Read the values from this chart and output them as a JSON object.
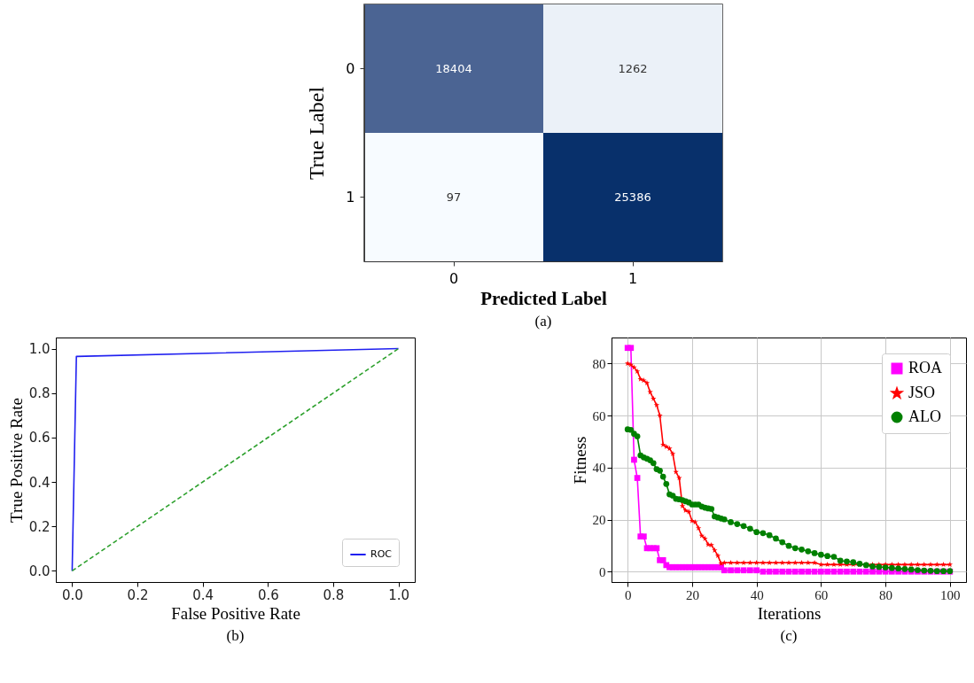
{
  "chart_data": [
    {
      "type": "heatmap",
      "xlabel": "Predicted Label",
      "ylabel": "True Label",
      "categories": [
        "0",
        "1"
      ],
      "y_categories": [
        "0",
        "1"
      ],
      "cells": [
        [
          18404,
          1262
        ],
        [
          97,
          25386
        ]
      ],
      "data_labels": true,
      "annotations": [
        "(a)"
      ]
    },
    {
      "type": "line",
      "xlabel": "False Positive Rate",
      "ylabel": "True Positive Rate",
      "xlim": [
        -0.05,
        1.05
      ],
      "ylim": [
        -0.05,
        1.05
      ],
      "xticks": [
        {
          "value": 0,
          "label": "0.0"
        },
        0.2,
        0.4,
        0.6,
        0.8,
        {
          "value": 1,
          "label": "1.0"
        }
      ],
      "yticks": [
        {
          "value": 0,
          "label": "0.0"
        },
        0.2,
        0.4,
        0.6,
        0.8,
        {
          "value": 1,
          "label": "1.0"
        }
      ],
      "series": [
        {
          "name": "ROC",
          "color": "#2020f0",
          "x": [
            0,
            0.013,
            1
          ],
          "values": [
            0,
            0.965,
            1
          ]
        },
        {
          "color": "#2ca02c",
          "line_style": "dashed",
          "x": [
            0,
            1
          ],
          "values": [
            0,
            1
          ]
        }
      ],
      "legend": "bottom right",
      "annotations": [
        "(b)"
      ]
    },
    {
      "type": "line",
      "xlabel": "Iterations",
      "ylabel": "Fitness",
      "xlim": [
        -5,
        105
      ],
      "ylim": [
        -4,
        90
      ],
      "xticks": [
        0,
        20,
        40,
        60,
        80,
        100
      ],
      "yticks": [
        0,
        20,
        40,
        60,
        80
      ],
      "x": [
        0,
        1,
        2,
        3,
        4,
        5,
        6,
        7,
        8,
        9,
        10,
        11,
        12,
        13,
        14,
        15,
        16,
        17,
        18,
        19,
        20,
        21,
        22,
        23,
        24,
        25,
        26,
        27,
        28,
        29,
        30,
        32,
        34,
        36,
        38,
        40,
        42,
        44,
        46,
        48,
        50,
        52,
        54,
        56,
        58,
        60,
        62,
        64,
        66,
        68,
        70,
        72,
        74,
        76,
        78,
        80,
        82,
        84,
        86,
        88,
        90,
        92,
        94,
        96,
        98,
        100
      ],
      "series": [
        {
          "name": "ROA",
          "color": "#ff00ff",
          "marker": "square",
          "values": [
            86,
            86,
            43,
            36,
            13.5,
            13.5,
            9,
            9,
            9,
            9,
            4.4,
            4.4,
            2.5,
            1.7,
            1.7,
            1.7,
            1.7,
            1.7,
            1.7,
            1.7,
            1.7,
            1.7,
            1.7,
            1.7,
            1.7,
            1.7,
            1.7,
            1.7,
            1.7,
            1.7,
            0.5,
            0.5,
            0.5,
            0.5,
            0.5,
            0.5,
            0,
            0,
            0,
            0,
            0,
            0,
            0,
            0,
            0,
            0,
            0,
            0,
            0,
            0,
            0,
            0,
            0,
            0,
            0,
            0,
            0,
            0,
            0,
            0,
            0,
            0,
            0,
            0,
            0,
            0
          ]
        },
        {
          "name": "JSO",
          "color": "#ff0000",
          "marker": "star",
          "values": [
            80,
            79.5,
            78.5,
            77,
            74,
            73.5,
            72.5,
            69,
            66.5,
            64,
            60,
            48.8,
            48,
            47.3,
            45.3,
            38.3,
            36,
            25.2,
            23.5,
            23,
            19.5,
            19,
            16.7,
            13.8,
            12.7,
            10.4,
            10.2,
            8.2,
            6.1,
            3.1,
            3.4,
            3.4,
            3.4,
            3.4,
            3.4,
            3.4,
            3.4,
            3.4,
            3.4,
            3.4,
            3.4,
            3.4,
            3.4,
            3.4,
            3.4,
            2.7,
            2.7,
            2.7,
            2.7,
            2.7,
            2.7,
            2.7,
            2.7,
            2.7,
            2.7,
            2.7,
            2.7,
            2.7,
            2.7,
            2.7,
            2.7,
            2.7,
            2.7,
            2.7,
            2.7,
            2.7
          ]
        },
        {
          "name": "ALO",
          "color": "#008000",
          "marker": "circle",
          "values": [
            54.7,
            54.5,
            53,
            52,
            44.7,
            43.9,
            43.4,
            42.8,
            41.7,
            39.4,
            38.8,
            36.5,
            33.7,
            29.7,
            29.2,
            28,
            27.8,
            27.5,
            27,
            26.6,
            25.8,
            25.8,
            25.8,
            25,
            24.6,
            24.3,
            24.1,
            21.2,
            20.8,
            20.4,
            20.1,
            19,
            18.3,
            17.5,
            16.5,
            15.2,
            14.8,
            14,
            12.7,
            11.3,
            9.9,
            9,
            8.5,
            7.8,
            7.1,
            6.5,
            6,
            5.7,
            4.2,
            3.9,
            3.6,
            3,
            2.5,
            2,
            1.8,
            1.6,
            1.4,
            1.2,
            1,
            0.8,
            0.6,
            0.4,
            0.3,
            0.2,
            0.2,
            0.2
          ]
        }
      ],
      "grid": true,
      "legend": "top right",
      "annotations": [
        "(c)"
      ]
    }
  ]
}
